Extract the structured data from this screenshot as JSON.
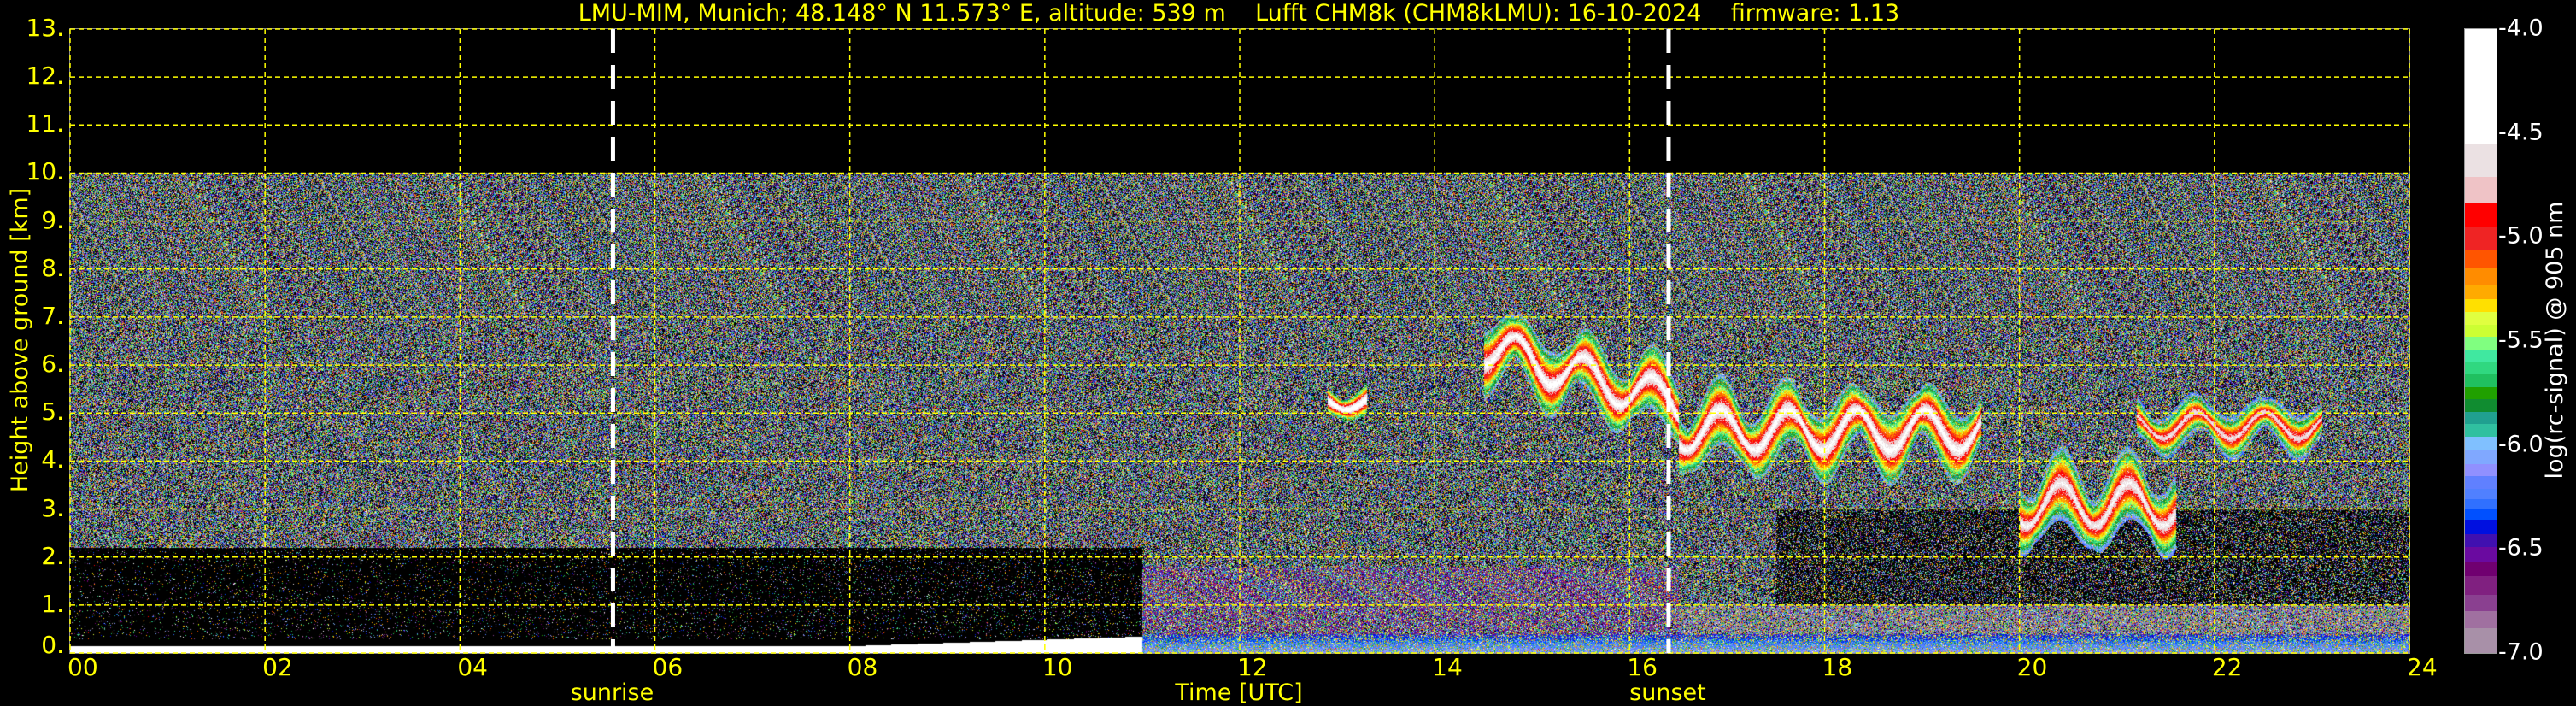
{
  "title": "LMU-MIM, Munich; 48.148° N 11.573° E, altitude: 539 m    Lufft CHM8k (CHM8kLMU): 16-10-2024    firmware: 1.13",
  "chart_data": {
    "type": "heatmap",
    "title": "LMU-MIM, Munich; 48.148° N 11.573° E, altitude: 539 m    Lufft CHM8k (CHM8kLMU): 16-10-2024    firmware: 1.13",
    "xlabel": "Time [UTC]",
    "ylabel": "Height above ground [km]",
    "xlim": [
      0,
      24
    ],
    "ylim": [
      0,
      13
    ],
    "x_ticks": [
      "00",
      "02",
      "04",
      "06",
      "08",
      "10",
      "12",
      "14",
      "16",
      "18",
      "20",
      "22",
      "24"
    ],
    "y_ticks": [
      "0.",
      "1.",
      "2.",
      "3.",
      "4.",
      "5.",
      "6.",
      "7.",
      "8.",
      "9.",
      "10.",
      "11.",
      "12.",
      "13."
    ],
    "grid": true,
    "grid_color": "#ffff00",
    "data_top_km": 10,
    "annotations": [
      {
        "label": "sunrise",
        "time": 5.57
      },
      {
        "label": "sunset",
        "time": 16.4
      }
    ],
    "colorbar": {
      "label": "log(rc-signal) @ 905 nm",
      "range": [
        -7.0,
        -4.0
      ],
      "ticks": [
        "-4.0",
        "-4.5",
        "-5.0",
        "-5.5",
        "-6.0",
        "-6.5",
        "-7.0"
      ],
      "levels": [
        {
          "min": -4.55,
          "color": "#ffffff"
        },
        {
          "min": -4.71,
          "color": "#ebe1e3"
        },
        {
          "min": -4.84,
          "color": "#efc3c6"
        },
        {
          "min": -4.95,
          "color": "#ff0000"
        },
        {
          "min": -5.06,
          "color": "#ef2424"
        },
        {
          "min": -5.15,
          "color": "#ff5500"
        },
        {
          "min": -5.23,
          "color": "#ff8c00"
        },
        {
          "min": -5.3,
          "color": "#ffaa00"
        },
        {
          "min": -5.36,
          "color": "#ffe000"
        },
        {
          "min": -5.42,
          "color": "#e0ff40"
        },
        {
          "min": -5.48,
          "color": "#ccff33"
        },
        {
          "min": -5.54,
          "color": "#80ff80"
        },
        {
          "min": -5.6,
          "color": "#40e8a0"
        },
        {
          "min": -5.66,
          "color": "#30d880"
        },
        {
          "min": -5.72,
          "color": "#20c060"
        },
        {
          "min": -5.78,
          "color": "#20a000"
        },
        {
          "min": -5.84,
          "color": "#108c30"
        },
        {
          "min": -5.9,
          "color": "#20a090"
        },
        {
          "min": -5.96,
          "color": "#30c0a0"
        },
        {
          "min": -6.02,
          "color": "#80c0ff"
        },
        {
          "min": -6.09,
          "color": "#80a8ff"
        },
        {
          "min": -6.15,
          "color": "#9090ff"
        },
        {
          "min": -6.21,
          "color": "#6080ff"
        },
        {
          "min": -6.26,
          "color": "#5080ff"
        },
        {
          "min": -6.31,
          "color": "#3070ff"
        },
        {
          "min": -6.36,
          "color": "#0050ff"
        },
        {
          "min": -6.43,
          "color": "#0010e0"
        },
        {
          "min": -6.49,
          "color": "#4010b0"
        },
        {
          "min": -6.56,
          "color": "#6a0aa0"
        },
        {
          "min": -6.63,
          "color": "#700070"
        },
        {
          "min": -6.72,
          "color": "#802080"
        },
        {
          "min": -6.8,
          "color": "#8a4090"
        },
        {
          "min": -6.88,
          "color": "#a070a0"
        },
        {
          "min": -7.0,
          "color": "#a890a8"
        }
      ]
    },
    "layers": [
      {
        "kind": "surface",
        "t": [
          0,
          11
        ],
        "base_km": 0,
        "top_km": 0.15,
        "value": -4.3
      },
      {
        "kind": "surface_rise",
        "t": [
          8,
          11
        ],
        "base_km": 0.1,
        "top_km": 0.3,
        "value": -4.3
      },
      {
        "kind": "boundary",
        "t": [
          11,
          24
        ],
        "base_km": 0,
        "top_km": 0.4,
        "value": -6.3
      },
      {
        "kind": "aerosol",
        "t": [
          11,
          16.5
        ],
        "base_km": 0.4,
        "top_km": 1.8,
        "value": -6.6
      },
      {
        "kind": "aerosol",
        "t": [
          16.5,
          24
        ],
        "base_km": 0.4,
        "top_km": 1.0,
        "value": -6.9
      },
      {
        "kind": "cloud",
        "t": [
          12.9,
          13.3
        ],
        "base_km": 4.9,
        "top_km": 5.6,
        "value": -4.2
      },
      {
        "kind": "cloud",
        "t": [
          14.5,
          16.5
        ],
        "base_km": 5.0,
        "top_km": 6.6,
        "value": -4.4
      },
      {
        "kind": "cloud",
        "t": [
          16.5,
          19.6
        ],
        "base_km": 3.8,
        "top_km": 5.5,
        "value": -4.4
      },
      {
        "kind": "cloud",
        "t": [
          20.0,
          21.6
        ],
        "base_km": 2.2,
        "top_km": 4.0,
        "value": -4.5
      },
      {
        "kind": "cloud",
        "t": [
          21.2,
          23.1
        ],
        "base_km": 4.2,
        "top_km": 5.3,
        "value": -4.6
      }
    ]
  }
}
